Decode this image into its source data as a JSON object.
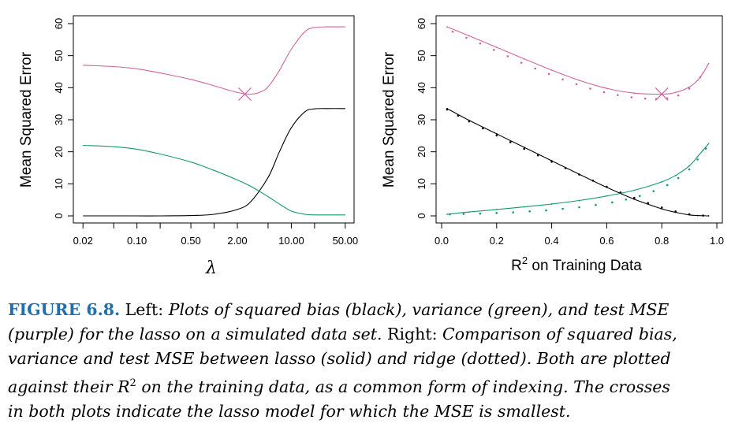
{
  "colors": {
    "bias": "#000000",
    "variance": "#12996a",
    "mse": "#d0649e"
  },
  "caption": {
    "figure_label": "FIGURE 6.8.",
    "l1": "Left:",
    "l2": "Plots of squared bias (black), variance (green), and test MSE",
    "l3": "(purple) for the lasso on a simulated data set.",
    "l4": "Right:",
    "l5": "Comparison of squared bias,",
    "l6": "variance and test MSE between lasso (solid) and ridge (dotted). Both are plotted",
    "l7": "against their",
    "l8": "R",
    "l9": "2",
    "l10": "on the training data, as a common form of indexing. The crosses",
    "l11": "in both plots indicate the lasso model for which the MSE is smallest."
  },
  "chart_data": [
    {
      "type": "line",
      "ylabel": "Mean Squared Error",
      "xlabel": "λ",
      "xscale": "log",
      "xlim": [
        0.015,
        65
      ],
      "ylim": [
        0,
        60
      ],
      "x_tick_labels": [
        "0.02",
        "0.10",
        "0.50",
        "2.00",
        "10.00",
        "50.00"
      ],
      "x_ticks": [
        0.02,
        0.05,
        0.1,
        0.2,
        0.5,
        1,
        2,
        5,
        10,
        20,
        50
      ],
      "y_ticks": [
        0,
        10,
        20,
        30,
        40,
        50,
        60
      ],
      "series": [
        {
          "style": "solid",
          "color_key": "bias",
          "x": [
            0.02,
            0.05,
            0.1,
            0.2,
            0.5,
            1,
            2,
            3,
            5,
            7,
            10,
            15,
            20,
            30,
            50
          ],
          "y": [
            0,
            0,
            0,
            0,
            0.1,
            0.5,
            2,
            4.5,
            12,
            20,
            27.5,
            32.5,
            33.4,
            33.5,
            33.5
          ]
        },
        {
          "style": "solid",
          "color_key": "variance",
          "x": [
            0.02,
            0.05,
            0.1,
            0.2,
            0.5,
            1,
            2,
            3,
            5,
            7,
            10,
            15,
            20,
            30,
            50
          ],
          "y": [
            22,
            21.6,
            20.8,
            19.3,
            16.8,
            14.2,
            11.2,
            9.2,
            6,
            3.7,
            1.5,
            0.5,
            0.3,
            0.3,
            0.3
          ]
        },
        {
          "style": "solid",
          "color_key": "mse",
          "x": [
            0.02,
            0.05,
            0.1,
            0.2,
            0.5,
            1,
            2,
            3,
            4,
            5,
            7,
            10,
            15,
            20,
            30,
            50
          ],
          "y": [
            47,
            46.6,
            45.9,
            44.6,
            42.6,
            40.6,
            38.5,
            38,
            38.7,
            40.3,
            45.4,
            52,
            57.5,
            58.8,
            59,
            59
          ]
        }
      ],
      "markers": [
        {
          "shape": "cross",
          "color_key": "mse",
          "x": 2.5,
          "y": 38
        }
      ]
    },
    {
      "type": "line",
      "ylabel": "Mean Squared Error",
      "xlabel": "R² on Training Data",
      "xlabel_main": "R",
      "xlabel_sup": "2",
      "xlabel_rest": " on Training Data",
      "xlim": [
        -0.02,
        1.02
      ],
      "ylim": [
        0,
        60
      ],
      "x_tick_labels": [
        "0.0",
        "0.2",
        "0.4",
        "0.6",
        "0.8",
        "1.0"
      ],
      "x_ticks": [
        0,
        0.2,
        0.4,
        0.6,
        0.8,
        1.0
      ],
      "y_ticks": [
        0,
        10,
        20,
        30,
        40,
        50,
        60
      ],
      "series": [
        {
          "style": "solid",
          "color_key": "bias",
          "x": [
            0.02,
            0.1,
            0.2,
            0.3,
            0.4,
            0.5,
            0.6,
            0.7,
            0.8,
            0.85,
            0.9,
            0.93,
            0.97
          ],
          "y": [
            33.5,
            29.8,
            25.6,
            21.4,
            17.2,
            13,
            8.9,
            5.2,
            2.2,
            1.1,
            0.3,
            0.1,
            0
          ]
        },
        {
          "style": "solid",
          "color_key": "variance",
          "x": [
            0.02,
            0.1,
            0.2,
            0.3,
            0.4,
            0.5,
            0.6,
            0.7,
            0.8,
            0.85,
            0.9,
            0.93,
            0.95,
            0.97
          ],
          "y": [
            0.5,
            1.2,
            2,
            2.8,
            3.7,
            4.8,
            6.2,
            8,
            10.6,
            12.6,
            15.6,
            18.5,
            20.5,
            22.5
          ]
        },
        {
          "style": "solid",
          "color_key": "mse",
          "x": [
            0.02,
            0.1,
            0.2,
            0.3,
            0.4,
            0.5,
            0.6,
            0.7,
            0.8,
            0.85,
            0.9,
            0.93,
            0.95,
            0.97
          ],
          "y": [
            59,
            56.2,
            52.6,
            49,
            45.5,
            42.3,
            39.8,
            38.3,
            38,
            38.5,
            40.2,
            42.3,
            44.6,
            47.5
          ]
        },
        {
          "style": "dotted",
          "color_key": "bias",
          "x": [
            0.02,
            0.06,
            0.1,
            0.15,
            0.2,
            0.25,
            0.3,
            0.35,
            0.4,
            0.45,
            0.5,
            0.55,
            0.6,
            0.65,
            0.7,
            0.75,
            0.8,
            0.85,
            0.9,
            0.95
          ],
          "y": [
            33.2,
            31.3,
            29.5,
            27.3,
            25.1,
            23,
            20.9,
            18.9,
            16.9,
            14.9,
            12.9,
            11,
            9.1,
            7.3,
            5.6,
            4,
            2.6,
            1.4,
            0.5,
            0.1
          ]
        },
        {
          "style": "dotted",
          "color_key": "variance",
          "x": [
            0.03,
            0.08,
            0.14,
            0.2,
            0.26,
            0.32,
            0.38,
            0.44,
            0.5,
            0.56,
            0.62,
            0.67,
            0.72,
            0.77,
            0.82,
            0.86,
            0.9,
            0.93,
            0.96
          ],
          "y": [
            0.5,
            0.6,
            0.7,
            0.9,
            1.1,
            1.4,
            1.7,
            2.2,
            2.7,
            3.4,
            4.2,
            5.1,
            6.2,
            7.7,
            9.6,
            11.8,
            14.5,
            17.6,
            21
          ]
        },
        {
          "style": "dotted",
          "color_key": "mse",
          "x": [
            0.04,
            0.09,
            0.14,
            0.19,
            0.24,
            0.29,
            0.34,
            0.39,
            0.44,
            0.49,
            0.54,
            0.59,
            0.64,
            0.69,
            0.74,
            0.78,
            0.82,
            0.86,
            0.9,
            0.94
          ],
          "y": [
            57.5,
            55.6,
            53.8,
            51.8,
            49.8,
            47.8,
            46,
            44.3,
            42.6,
            41.1,
            39.7,
            38.6,
            37.7,
            37,
            36.6,
            36.5,
            36.7,
            37.6,
            39.7,
            43.3
          ]
        }
      ],
      "markers": [
        {
          "shape": "cross",
          "color_key": "mse",
          "x": 0.8,
          "y": 38
        }
      ]
    }
  ]
}
